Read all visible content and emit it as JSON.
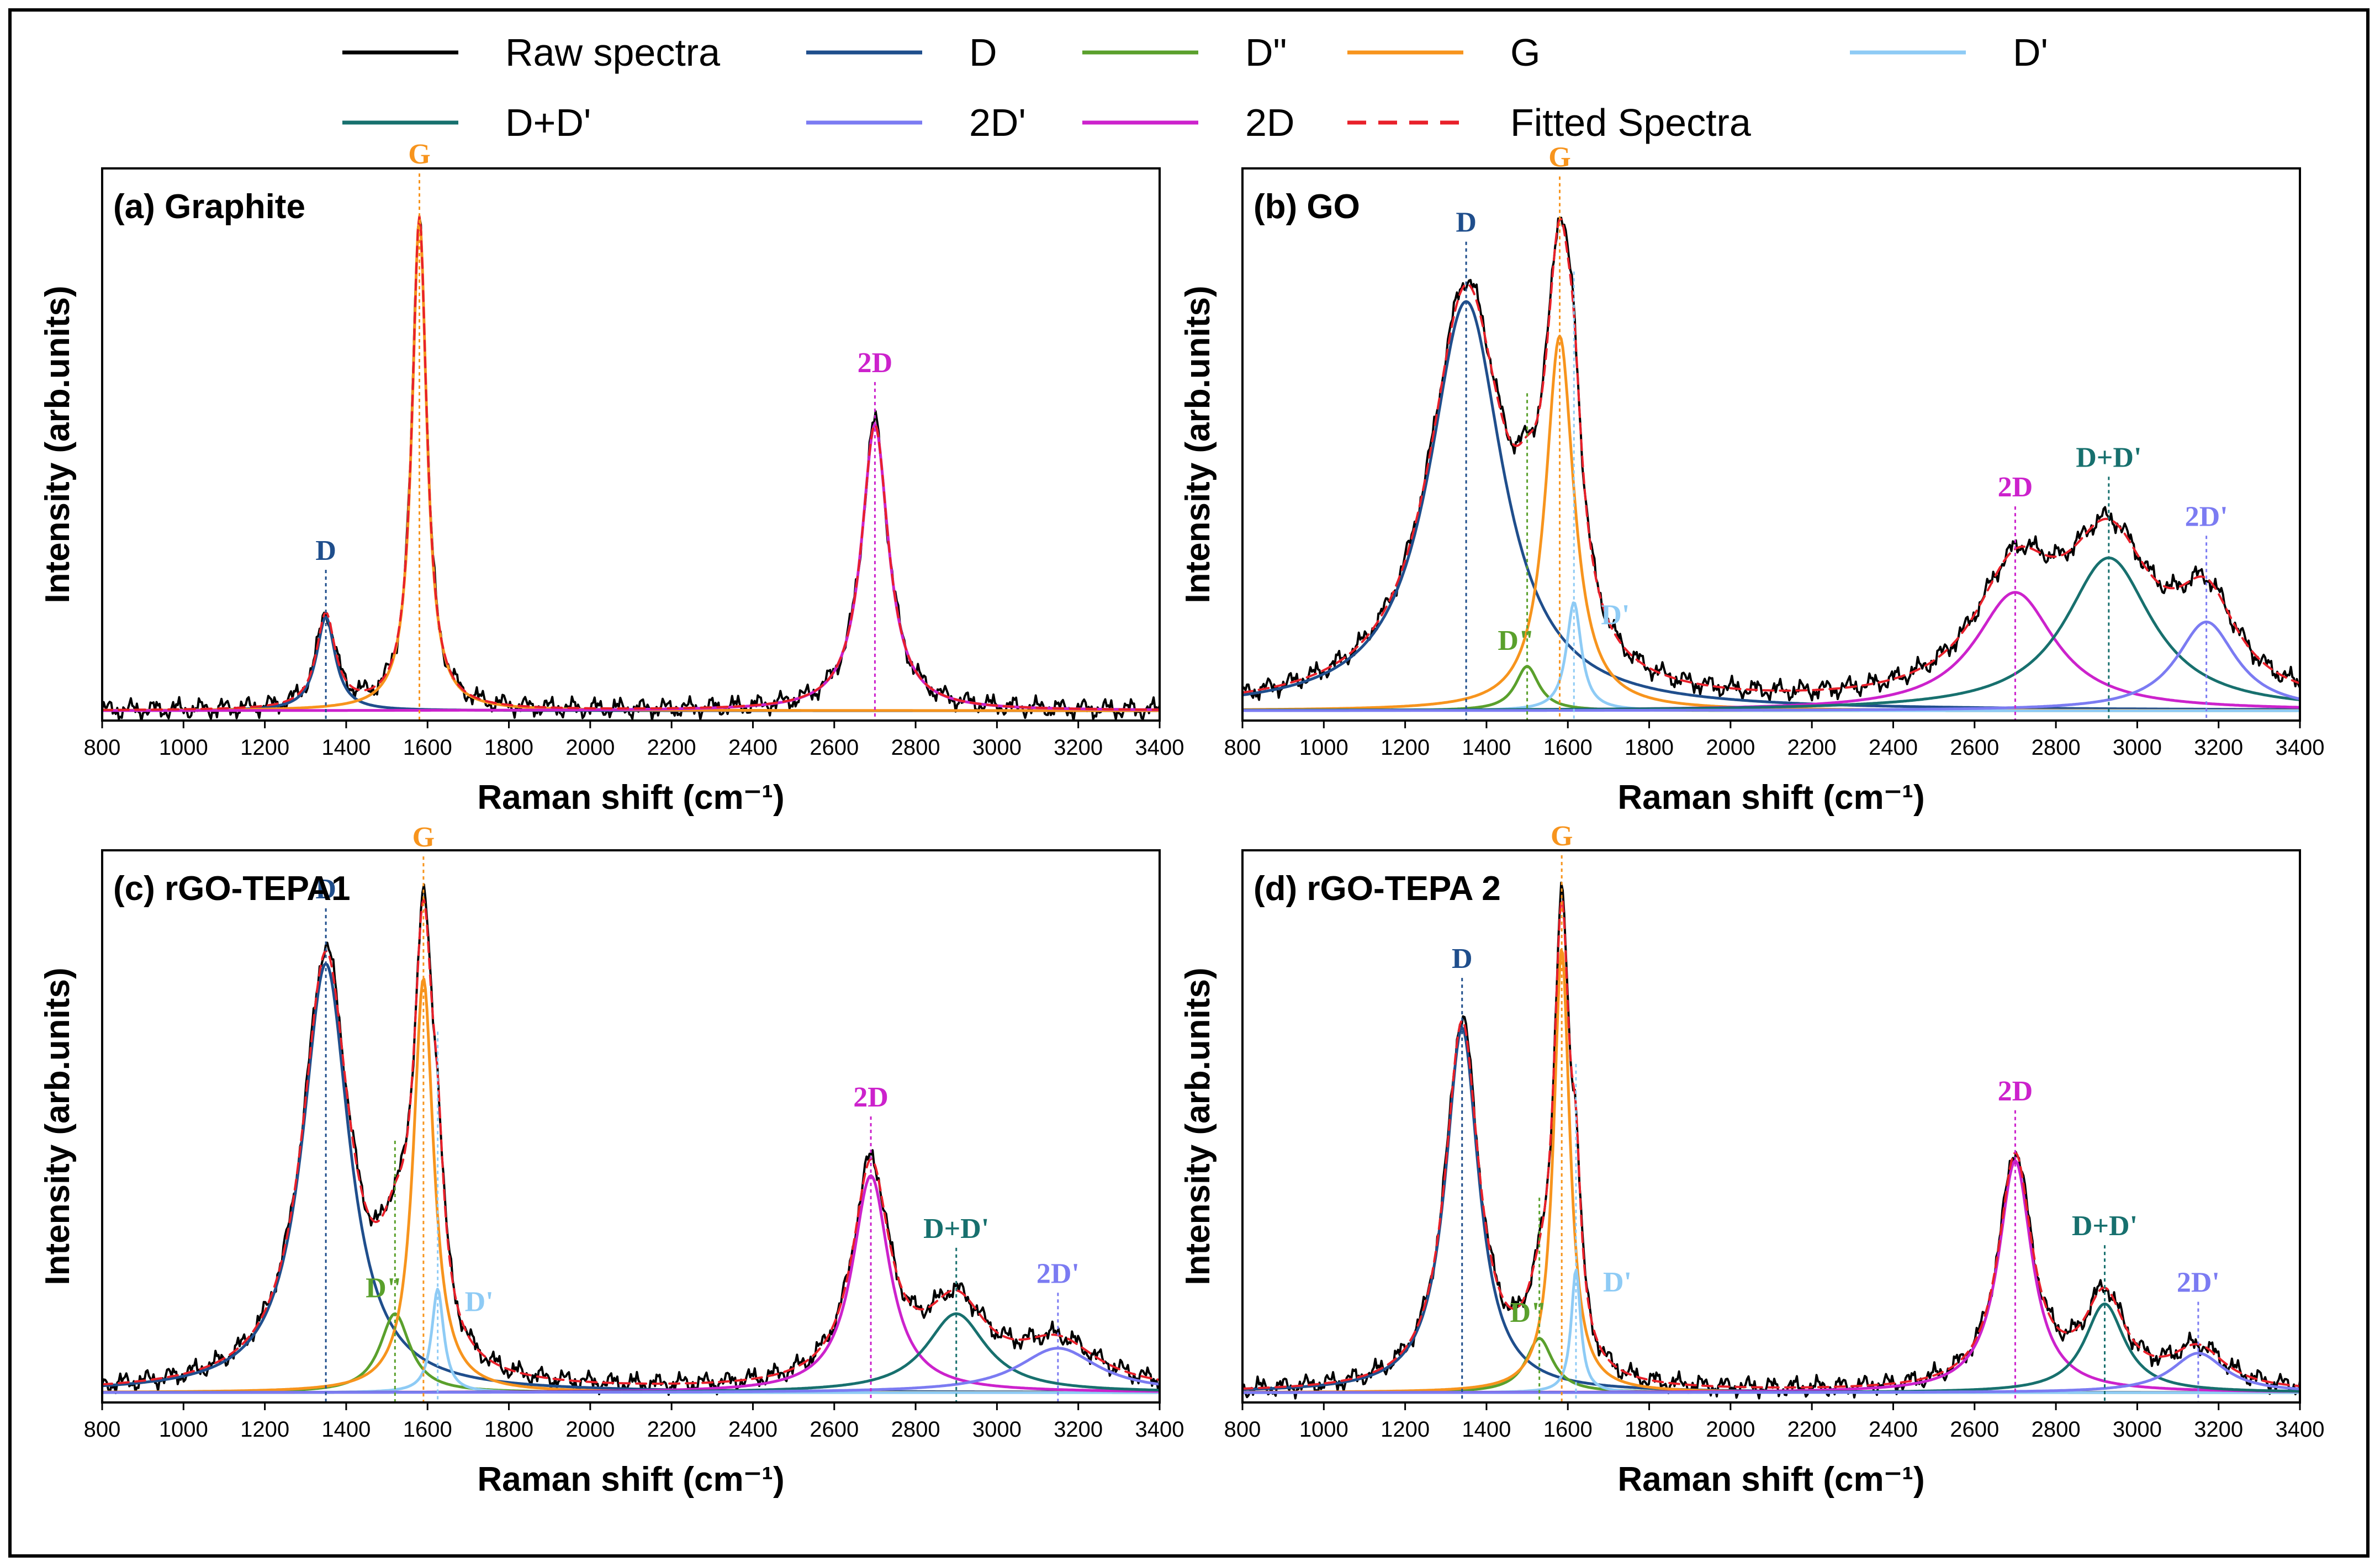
{
  "legend": {
    "items": [
      {
        "key": "raw",
        "label": "Raw spectra",
        "color": "#000000",
        "dashed": false
      },
      {
        "key": "D",
        "label": "D",
        "color": "#1f4e8c",
        "dashed": false
      },
      {
        "key": "Dpp",
        "label": "D\"",
        "color": "#5aa02c",
        "dashed": false
      },
      {
        "key": "G",
        "label": "G",
        "color": "#f7941d",
        "dashed": false
      },
      {
        "key": "Dp",
        "label": "D'",
        "color": "#8ecbf5",
        "dashed": false
      },
      {
        "key": "DDp",
        "label": "D+D'",
        "color": "#17706e",
        "dashed": false
      },
      {
        "key": "2Dp",
        "label": "2D'",
        "color": "#7b7bf2",
        "dashed": false
      },
      {
        "key": "2D",
        "label": "2D",
        "color": "#cc22cc",
        "dashed": false
      },
      {
        "key": "fit",
        "label": "Fitted Spectra",
        "color": "#e8202a",
        "dashed": true
      }
    ]
  },
  "chart_data": [
    {
      "type": "line",
      "title": "(a) Graphite",
      "xlabel": "Raman shift (cm⁻¹)",
      "ylabel": "Intensity (arb.units)",
      "xlim": [
        800,
        3400
      ],
      "ylim": [
        0,
        1.12
      ],
      "xticks": [
        800,
        1000,
        1200,
        1400,
        1600,
        1800,
        2000,
        2200,
        2400,
        2600,
        2800,
        3000,
        3200,
        3400
      ],
      "baseline": 0.02,
      "peaks": [
        {
          "key": "D",
          "center": 1350,
          "height": 0.19,
          "width": 28
        },
        {
          "key": "G",
          "center": 1580,
          "height": 1.0,
          "width": 22
        },
        {
          "key": "2D",
          "center": 2700,
          "height": 0.58,
          "width": 40
        }
      ],
      "annotations": [
        {
          "text": "D",
          "x": 1350,
          "key": "D"
        },
        {
          "text": "G",
          "x": 1580,
          "key": "G"
        },
        {
          "text": "2D",
          "x": 2700,
          "key": "2D"
        }
      ]
    },
    {
      "type": "line",
      "title": "(b) GO",
      "xlabel": "Raman shift (cm⁻¹)",
      "ylabel": "Intensity (arb.units)",
      "xlim": [
        800,
        3400
      ],
      "ylim": [
        0,
        1.12
      ],
      "xticks": [
        800,
        1000,
        1200,
        1400,
        1600,
        1800,
        2000,
        2200,
        2400,
        2600,
        2800,
        3000,
        3200,
        3400
      ],
      "baseline": 0.02,
      "peaks": [
        {
          "key": "D",
          "center": 1350,
          "height": 0.83,
          "width": 110
        },
        {
          "key": "Dpp",
          "center": 1500,
          "height": 0.09,
          "width": 35
        },
        {
          "key": "G",
          "center": 1580,
          "height": 0.76,
          "width": 42
        },
        {
          "key": "Dp",
          "center": 1615,
          "height": 0.22,
          "width": 22
        },
        {
          "key": "2D",
          "center": 2700,
          "height": 0.24,
          "width": 120
        },
        {
          "key": "DDp",
          "center": 2930,
          "height": 0.31,
          "width": 130
        },
        {
          "key": "2Dp",
          "center": 3170,
          "height": 0.18,
          "width": 90
        }
      ],
      "annotations": [
        {
          "text": "D",
          "x": 1350,
          "key": "D"
        },
        {
          "text": "G",
          "x": 1580,
          "key": "G"
        },
        {
          "text": "D\"",
          "x": 1500,
          "key": "Dpp"
        },
        {
          "text": "D'",
          "x": 1615,
          "key": "Dp"
        },
        {
          "text": "2D",
          "x": 2700,
          "key": "2D"
        },
        {
          "text": "D+D'",
          "x": 2930,
          "key": "DDp"
        },
        {
          "text": "2D'",
          "x": 3170,
          "key": "2Dp"
        }
      ]
    },
    {
      "type": "line",
      "title": "(c) rGO-TEPA1",
      "xlabel": "Raman shift (cm⁻¹)",
      "ylabel": "Intensity (arb.units)",
      "xlim": [
        800,
        3400
      ],
      "ylim": [
        0,
        1.12
      ],
      "xticks": [
        800,
        1000,
        1200,
        1400,
        1600,
        1800,
        2000,
        2200,
        2400,
        2600,
        2800,
        3000,
        3200,
        3400
      ],
      "baseline": 0.02,
      "peaks": [
        {
          "key": "D",
          "center": 1350,
          "height": 0.87,
          "width": 70
        },
        {
          "key": "Dpp",
          "center": 1520,
          "height": 0.16,
          "width": 45
        },
        {
          "key": "G",
          "center": 1590,
          "height": 0.84,
          "width": 30
        },
        {
          "key": "Dp",
          "center": 1625,
          "height": 0.21,
          "width": 18
        },
        {
          "key": "2D",
          "center": 2690,
          "height": 0.44,
          "width": 55
        },
        {
          "key": "DDp",
          "center": 2900,
          "height": 0.16,
          "width": 90
        },
        {
          "key": "2Dp",
          "center": 3150,
          "height": 0.09,
          "width": 120
        }
      ],
      "annotations": [
        {
          "text": "D",
          "x": 1350,
          "key": "D"
        },
        {
          "text": "G",
          "x": 1590,
          "key": "G"
        },
        {
          "text": "D\"",
          "x": 1520,
          "key": "Dpp"
        },
        {
          "text": "D'",
          "x": 1625,
          "key": "Dp"
        },
        {
          "text": "2D",
          "x": 2690,
          "key": "2D"
        },
        {
          "text": "D+D'",
          "x": 2900,
          "key": "DDp"
        },
        {
          "text": "2D'",
          "x": 3150,
          "key": "2Dp"
        }
      ]
    },
    {
      "type": "line",
      "title": "(d) rGO-TEPA 2",
      "xlabel": "Raman shift (cm⁻¹)",
      "ylabel": "Intensity (arb.units)",
      "xlim": [
        800,
        3400
      ],
      "ylim": [
        0,
        1.12
      ],
      "xticks": [
        800,
        1000,
        1200,
        1400,
        1600,
        1800,
        2000,
        2200,
        2400,
        2600,
        2800,
        3000,
        3200,
        3400
      ],
      "baseline": 0.02,
      "peaks": [
        {
          "key": "D",
          "center": 1340,
          "height": 0.74,
          "width": 50
        },
        {
          "key": "Dpp",
          "center": 1530,
          "height": 0.11,
          "width": 40
        },
        {
          "key": "G",
          "center": 1585,
          "height": 0.9,
          "width": 24
        },
        {
          "key": "Dp",
          "center": 1620,
          "height": 0.25,
          "width": 14
        },
        {
          "key": "2D",
          "center": 2700,
          "height": 0.47,
          "width": 50
        },
        {
          "key": "DDp",
          "center": 2920,
          "height": 0.18,
          "width": 60
        },
        {
          "key": "2Dp",
          "center": 3150,
          "height": 0.08,
          "width": 80
        }
      ],
      "annotations": [
        {
          "text": "D",
          "x": 1340,
          "key": "D"
        },
        {
          "text": "G",
          "x": 1585,
          "key": "G"
        },
        {
          "text": "D\"",
          "x": 1530,
          "key": "Dpp"
        },
        {
          "text": "D'",
          "x": 1620,
          "key": "Dp"
        },
        {
          "text": "2D",
          "x": 2700,
          "key": "2D"
        },
        {
          "text": "D+D'",
          "x": 2920,
          "key": "DDp"
        },
        {
          "text": "2D'",
          "x": 3150,
          "key": "2Dp"
        }
      ]
    }
  ]
}
